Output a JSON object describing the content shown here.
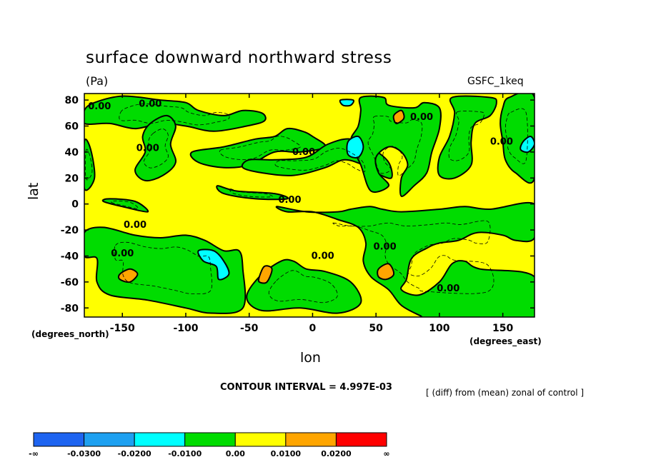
{
  "chart_data": {
    "type": "heatmap",
    "title": "surface downward northward stress",
    "units": "(Pa)",
    "model": "GSFC_1keq",
    "xlabel": "lon",
    "ylabel": "lat",
    "x_unit_label": "(degrees_east)",
    "y_unit_label": "(degrees_north)",
    "xlim": [
      -180,
      175
    ],
    "ylim": [
      -87,
      85
    ],
    "x_ticks": [
      -150,
      -100,
      -50,
      0,
      50,
      100,
      150
    ],
    "y_ticks": [
      80,
      60,
      40,
      20,
      0,
      -20,
      -40,
      -60,
      -80
    ],
    "x_tick_labels": [
      "-150",
      "-100",
      "-50",
      "0",
      "50",
      "100",
      "150"
    ],
    "y_tick_labels": [
      "80",
      "60",
      "40",
      "20",
      "0",
      "-20",
      "-40",
      "-60",
      "-80"
    ],
    "contour_interval_text": "CONTOUR INTERVAL = 4.997E-03",
    "note": "[ (diff) from (mean) zonal of control ]",
    "contour_labels": [
      {
        "text": "0.00",
        "lon": -168,
        "lat": 75
      },
      {
        "text": "0.00",
        "lon": -128,
        "lat": 77
      },
      {
        "text": "0.00",
        "lon": -130,
        "lat": 43
      },
      {
        "text": "0.00",
        "lon": -140,
        "lat": -16
      },
      {
        "text": "0.00",
        "lon": -150,
        "lat": -38
      },
      {
        "text": "0.00",
        "lon": -7,
        "lat": 40
      },
      {
        "text": "0.00",
        "lon": -18,
        "lat": 3
      },
      {
        "text": "0.00",
        "lon": 8,
        "lat": -40
      },
      {
        "text": "0.00",
        "lon": 57,
        "lat": -33
      },
      {
        "text": "0.00",
        "lon": 86,
        "lat": 67
      },
      {
        "text": "0.00",
        "lon": 149,
        "lat": 48
      },
      {
        "text": "0.00",
        "lon": 107,
        "lat": -65
      }
    ],
    "legend": {
      "colors": [
        "#1e64f0",
        "#1ea0f0",
        "#00ffff",
        "#00dc00",
        "#ffff00",
        "#ffa500",
        "#ff0000"
      ],
      "labels": [
        "-∞",
        "-0.0300",
        "-0.0200",
        "-0.0100",
        "0.00",
        "0.0100",
        "0.0200",
        "∞"
      ]
    },
    "regions_green": [
      [
        [
          -180,
          72
        ],
        [
          -172,
          78
        ],
        [
          -150,
          83
        ],
        [
          -120,
          80
        ],
        [
          -100,
          78
        ],
        [
          -90,
          72
        ],
        [
          -70,
          68
        ],
        [
          -55,
          72
        ],
        [
          -40,
          70
        ],
        [
          -38,
          64
        ],
        [
          -52,
          60
        ],
        [
          -78,
          56
        ],
        [
          -100,
          60
        ],
        [
          -120,
          62
        ],
        [
          -140,
          58
        ],
        [
          -160,
          62
        ],
        [
          -180,
          62
        ]
      ],
      [
        [
          -128,
          62
        ],
        [
          -115,
          68
        ],
        [
          -108,
          60
        ],
        [
          -112,
          46
        ],
        [
          -108,
          32
        ],
        [
          -118,
          22
        ],
        [
          -132,
          18
        ],
        [
          -140,
          26
        ],
        [
          -132,
          40
        ],
        [
          -134,
          52
        ]
      ],
      [
        [
          -180,
          48
        ],
        [
          -175,
          42
        ],
        [
          -172,
          20
        ],
        [
          -180,
          12
        ]
      ],
      [
        [
          -95,
          40
        ],
        [
          -70,
          44
        ],
        [
          -45,
          50
        ],
        [
          -30,
          52
        ],
        [
          -20,
          58
        ],
        [
          -8,
          56
        ],
        [
          0,
          52
        ],
        [
          10,
          44
        ],
        [
          -10,
          40
        ],
        [
          -30,
          40
        ],
        [
          -50,
          30
        ],
        [
          -70,
          28
        ],
        [
          -90,
          32
        ]
      ],
      [
        [
          -55,
          28
        ],
        [
          -40,
          24
        ],
        [
          -15,
          22
        ],
        [
          10,
          28
        ],
        [
          25,
          34
        ],
        [
          40,
          30
        ],
        [
          50,
          24
        ],
        [
          62,
          20
        ],
        [
          60,
          32
        ],
        [
          48,
          42
        ],
        [
          30,
          50
        ],
        [
          12,
          46
        ],
        [
          -5,
          36
        ],
        [
          -30,
          34
        ],
        [
          -50,
          34
        ]
      ],
      [
        [
          -75,
          14
        ],
        [
          -60,
          10
        ],
        [
          -30,
          8
        ],
        [
          -20,
          4
        ],
        [
          -45,
          4
        ],
        [
          -70,
          8
        ]
      ],
      [
        [
          -165,
          2
        ],
        [
          -150,
          -2
        ],
        [
          -130,
          -6
        ],
        [
          -140,
          2
        ],
        [
          -160,
          4
        ]
      ],
      [
        [
          -28,
          -2
        ],
        [
          -5,
          -6
        ],
        [
          20,
          -6
        ],
        [
          30,
          -4
        ],
        [
          45,
          -2
        ],
        [
          55,
          -4
        ],
        [
          70,
          -6
        ],
        [
          100,
          -4
        ],
        [
          120,
          -2
        ],
        [
          140,
          -4
        ],
        [
          175,
          0
        ],
        [
          175,
          -26
        ],
        [
          160,
          -28
        ],
        [
          150,
          -24
        ],
        [
          130,
          -22
        ],
        [
          115,
          -28
        ],
        [
          100,
          -30
        ],
        [
          90,
          -34
        ],
        [
          78,
          -42
        ],
        [
          74,
          -58
        ],
        [
          70,
          -66
        ],
        [
          84,
          -70
        ],
        [
          100,
          -60
        ],
        [
          110,
          -46
        ],
        [
          120,
          -44
        ],
        [
          132,
          -50
        ],
        [
          175,
          -56
        ],
        [
          175,
          -90
        ],
        [
          95,
          -90
        ],
        [
          85,
          -86
        ],
        [
          70,
          -78
        ],
        [
          60,
          -66
        ],
        [
          46,
          -56
        ],
        [
          40,
          -44
        ],
        [
          42,
          -30
        ],
        [
          36,
          -18
        ],
        [
          20,
          -12
        ],
        [
          0,
          -6
        ],
        [
          -20,
          -6
        ]
      ],
      [
        [
          -180,
          -22
        ],
        [
          -165,
          -18
        ],
        [
          -140,
          -24
        ],
        [
          -120,
          -26
        ],
        [
          -100,
          -24
        ],
        [
          -85,
          -28
        ],
        [
          -70,
          -36
        ],
        [
          -58,
          -36
        ],
        [
          -55,
          -50
        ],
        [
          -55,
          -80
        ],
        [
          -80,
          -84
        ],
        [
          -100,
          -80
        ],
        [
          -130,
          -74
        ],
        [
          -160,
          -70
        ],
        [
          -170,
          -60
        ],
        [
          -170,
          -42
        ],
        [
          -180,
          -40
        ]
      ],
      [
        [
          -42,
          -56
        ],
        [
          -25,
          -44
        ],
        [
          -15,
          -44
        ],
        [
          -5,
          -50
        ],
        [
          10,
          -52
        ],
        [
          30,
          -60
        ],
        [
          38,
          -76
        ],
        [
          20,
          -84
        ],
        [
          -10,
          -80
        ],
        [
          -40,
          -82
        ],
        [
          -52,
          -72
        ]
      ],
      [
        [
          38,
          82
        ],
        [
          56,
          82
        ],
        [
          60,
          76
        ],
        [
          80,
          74
        ],
        [
          88,
          78
        ],
        [
          100,
          74
        ],
        [
          100,
          58
        ],
        [
          94,
          40
        ],
        [
          90,
          24
        ],
        [
          80,
          14
        ],
        [
          70,
          6
        ],
        [
          70,
          20
        ],
        [
          75,
          30
        ],
        [
          70,
          40
        ],
        [
          60,
          44
        ],
        [
          50,
          36
        ],
        [
          52,
          24
        ],
        [
          60,
          14
        ],
        [
          46,
          10
        ],
        [
          38,
          30
        ],
        [
          30,
          48
        ],
        [
          36,
          60
        ],
        [
          38,
          72
        ]
      ],
      [
        [
          110,
          82
        ],
        [
          140,
          82
        ],
        [
          145,
          78
        ],
        [
          140,
          68
        ],
        [
          128,
          62
        ],
        [
          125,
          48
        ],
        [
          125,
          30
        ],
        [
          112,
          20
        ],
        [
          100,
          22
        ],
        [
          100,
          36
        ],
        [
          108,
          52
        ],
        [
          112,
          70
        ]
      ],
      [
        [
          155,
          82
        ],
        [
          175,
          82
        ],
        [
          175,
          20
        ],
        [
          160,
          24
        ],
        [
          152,
          34
        ],
        [
          150,
          48
        ],
        [
          148,
          62
        ],
        [
          150,
          74
        ]
      ]
    ],
    "regions_cyan": [
      [
        [
          -90,
          -36
        ],
        [
          -78,
          -36
        ],
        [
          -70,
          -44
        ],
        [
          -66,
          -54
        ],
        [
          -74,
          -58
        ],
        [
          -76,
          -48
        ],
        [
          -86,
          -44
        ]
      ],
      [
        [
          28,
          48
        ],
        [
          36,
          52
        ],
        [
          40,
          44
        ],
        [
          36,
          36
        ],
        [
          28,
          38
        ]
      ],
      [
        [
          22,
          80
        ],
        [
          32,
          80
        ],
        [
          30,
          76
        ],
        [
          24,
          76
        ]
      ],
      [
        [
          166,
          48
        ],
        [
          172,
          52
        ],
        [
          175,
          46
        ],
        [
          170,
          40
        ],
        [
          164,
          42
        ]
      ]
    ],
    "regions_orange": [
      [
        [
          -152,
          -54
        ],
        [
          -144,
          -50
        ],
        [
          -138,
          -54
        ],
        [
          -144,
          -60
        ],
        [
          -152,
          -58
        ]
      ],
      [
        [
          -42,
          -56
        ],
        [
          -38,
          -48
        ],
        [
          -32,
          -50
        ],
        [
          -36,
          -60
        ],
        [
          -42,
          -60
        ]
      ],
      [
        [
          52,
          -50
        ],
        [
          60,
          -46
        ],
        [
          64,
          -54
        ],
        [
          58,
          -58
        ],
        [
          52,
          -56
        ]
      ],
      [
        [
          64,
          68
        ],
        [
          70,
          72
        ],
        [
          72,
          66
        ],
        [
          66,
          62
        ]
      ]
    ]
  }
}
